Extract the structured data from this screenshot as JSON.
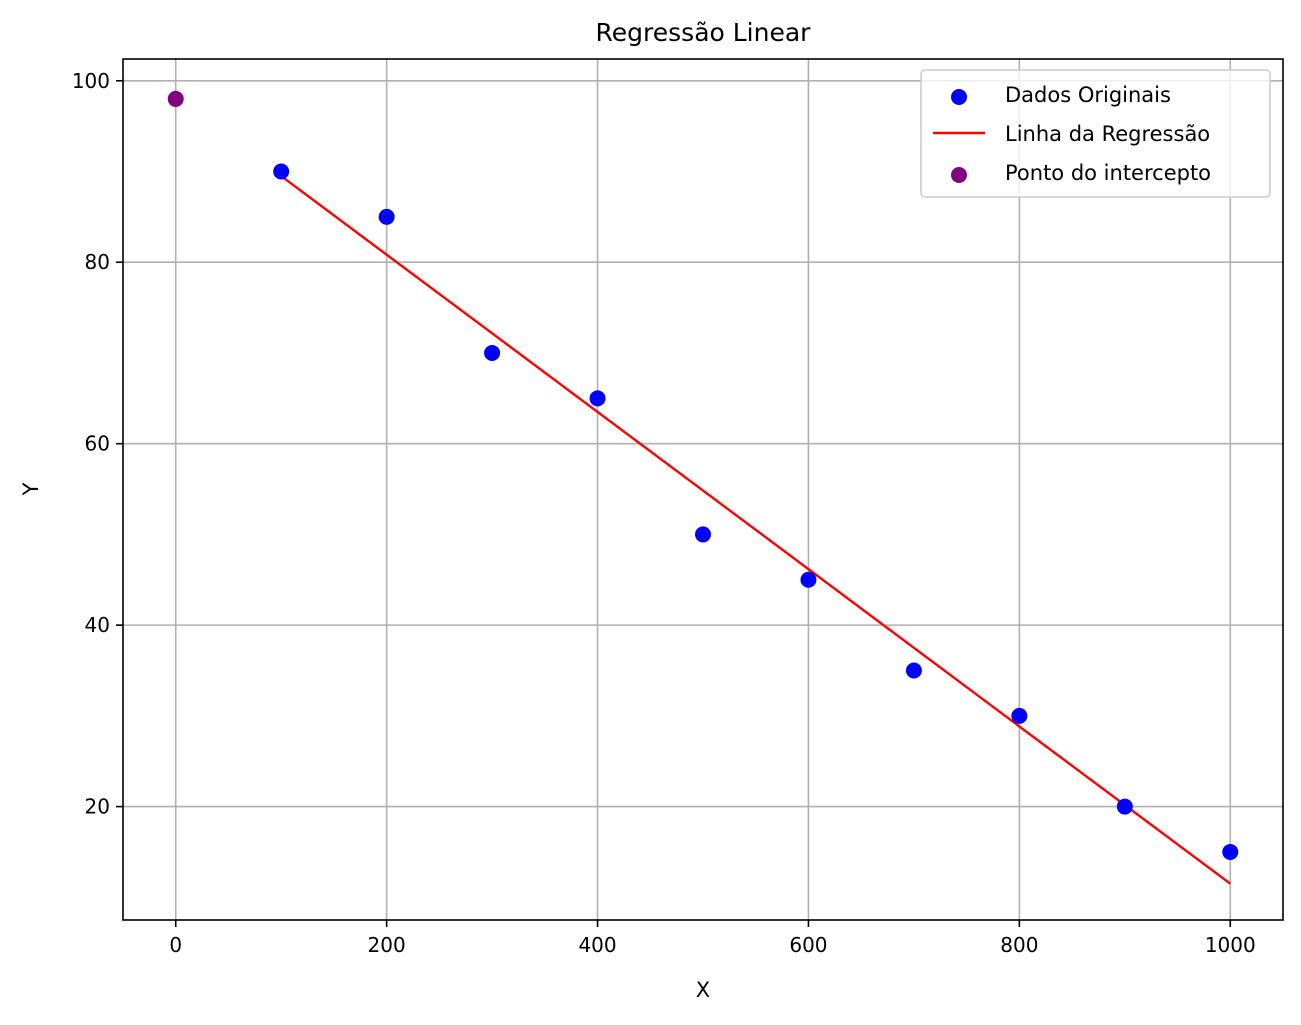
{
  "chart_data": {
    "type": "scatter",
    "title": "Regressão Linear",
    "xlabel": "X",
    "ylabel": "Y",
    "xlim": [
      -50,
      1050
    ],
    "ylim": [
      7.5,
      102.4
    ],
    "xticks": [
      0,
      200,
      400,
      600,
      800,
      1000
    ],
    "yticks": [
      20,
      40,
      60,
      80,
      100
    ],
    "grid": true,
    "legend_position": "top-right",
    "series": [
      {
        "name": "Dados Originais",
        "kind": "scatter",
        "color": "#0000ff",
        "points": [
          {
            "x": 100,
            "y": 90
          },
          {
            "x": 200,
            "y": 85
          },
          {
            "x": 300,
            "y": 70
          },
          {
            "x": 400,
            "y": 65
          },
          {
            "x": 500,
            "y": 50
          },
          {
            "x": 600,
            "y": 45
          },
          {
            "x": 700,
            "y": 35
          },
          {
            "x": 800,
            "y": 30
          },
          {
            "x": 900,
            "y": 20
          },
          {
            "x": 1000,
            "y": 15
          }
        ]
      },
      {
        "name": "Linha da Regressão",
        "kind": "line",
        "color": "#ff0000",
        "points": [
          {
            "x": 100,
            "y": 89.5
          },
          {
            "x": 1000,
            "y": 11.5
          }
        ]
      },
      {
        "name": "Ponto do intercepto",
        "kind": "scatter",
        "color": "#800080",
        "points": [
          {
            "x": 0,
            "y": 98
          }
        ]
      }
    ]
  }
}
